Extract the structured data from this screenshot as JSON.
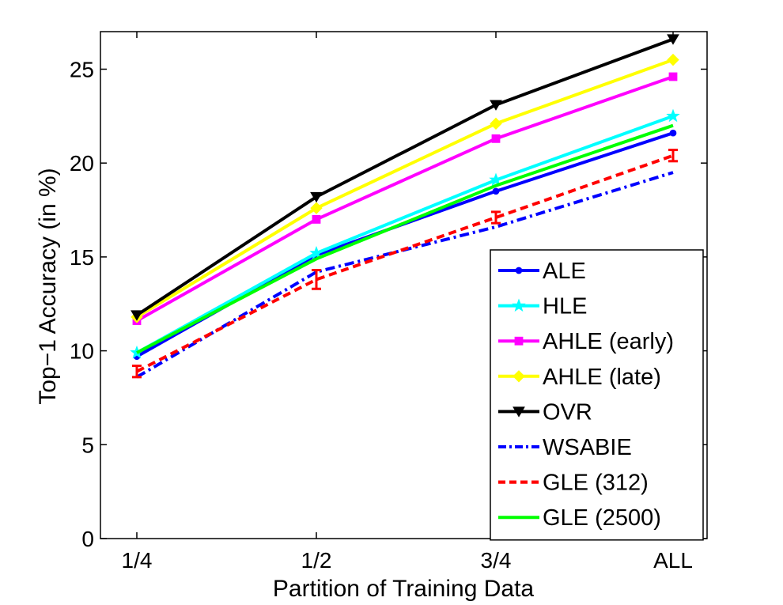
{
  "chart_data": {
    "type": "line",
    "xlabel": "Partition of Training Data",
    "ylabel": "Top−1 Accuracy (in %)",
    "categories": [
      "1/4",
      "1/2",
      "3/4",
      "ALL"
    ],
    "ylim": [
      0,
      27
    ],
    "yticks": [
      0,
      5,
      10,
      15,
      20,
      25
    ],
    "grid": false,
    "legend_position": "bottom-right",
    "series": [
      {
        "name": "ALE",
        "values": [
          9.7,
          15.1,
          18.5,
          21.6
        ],
        "color": "#0000ff",
        "marker": "dot",
        "dash": "solid",
        "error": null
      },
      {
        "name": "HLE",
        "values": [
          9.9,
          15.2,
          19.1,
          22.5
        ],
        "color": "#00ffff",
        "marker": "star",
        "dash": "solid",
        "error": null
      },
      {
        "name": "AHLE (early)",
        "values": [
          11.6,
          17.0,
          21.3,
          24.6
        ],
        "color": "#ff00ff",
        "marker": "square",
        "dash": "solid",
        "error": null
      },
      {
        "name": "AHLE (late)",
        "values": [
          11.8,
          17.6,
          22.1,
          25.5
        ],
        "color": "#ffff00",
        "marker": "diamond",
        "dash": "solid",
        "error": null
      },
      {
        "name": "OVR",
        "values": [
          11.9,
          18.2,
          23.1,
          26.6
        ],
        "color": "#000000",
        "marker": "triangle-down",
        "dash": "solid",
        "error": null
      },
      {
        "name": "WSABIE",
        "values": [
          8.6,
          14.2,
          16.6,
          19.5
        ],
        "color": "#0000ff",
        "marker": "none",
        "dash": "dashdot",
        "error": null
      },
      {
        "name": "GLE (312)",
        "values": [
          8.9,
          13.8,
          17.1,
          20.4
        ],
        "color": "#ff0000",
        "marker": "none",
        "dash": "dashed",
        "error": [
          0.3,
          0.5,
          0.3,
          0.3
        ]
      },
      {
        "name": "GLE (2500)",
        "values": [
          9.9,
          14.9,
          18.8,
          22.0
        ],
        "color": "#00ff00",
        "marker": "none",
        "dash": "solid",
        "error": null
      }
    ]
  }
}
